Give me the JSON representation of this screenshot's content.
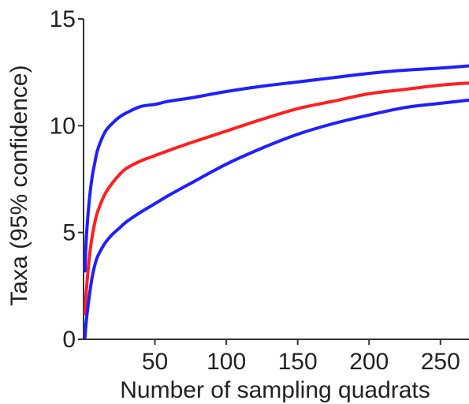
{
  "chart_data": {
    "type": "line",
    "title": "",
    "xlabel": "Number of sampling quadrats",
    "ylabel": "Taxa (95% confidence)",
    "xlim": [
      0,
      270
    ],
    "ylim": [
      0,
      15
    ],
    "x_ticks": [
      50,
      100,
      150,
      200,
      250
    ],
    "y_ticks": [
      0,
      5,
      10,
      15
    ],
    "x": [
      1,
      2,
      4,
      6,
      8,
      10,
      15,
      20,
      25,
      30,
      40,
      50,
      60,
      75,
      100,
      125,
      150,
      175,
      200,
      225,
      250,
      270
    ],
    "series": [
      {
        "color": "#1f1fff",
        "values": [
          3.2,
          4.8,
          6.5,
          7.6,
          8.3,
          8.9,
          9.7,
          10.1,
          10.4,
          10.6,
          10.9,
          11.0,
          11.15,
          11.3,
          11.6,
          11.85,
          12.05,
          12.25,
          12.45,
          12.6,
          12.7,
          12.8
        ]
      },
      {
        "color": "#ff1f1f",
        "values": [
          1.2,
          2.3,
          3.8,
          4.8,
          5.5,
          6.0,
          6.8,
          7.3,
          7.7,
          8.0,
          8.35,
          8.6,
          8.85,
          9.2,
          9.75,
          10.3,
          10.8,
          11.15,
          11.5,
          11.7,
          11.9,
          12.0
        ]
      },
      {
        "color": "#1f1fff",
        "values": [
          0.1,
          0.9,
          2.0,
          2.9,
          3.5,
          3.9,
          4.5,
          4.9,
          5.2,
          5.5,
          5.95,
          6.35,
          6.75,
          7.3,
          8.2,
          8.95,
          9.6,
          10.1,
          10.5,
          10.85,
          11.05,
          11.2
        ]
      }
    ]
  }
}
